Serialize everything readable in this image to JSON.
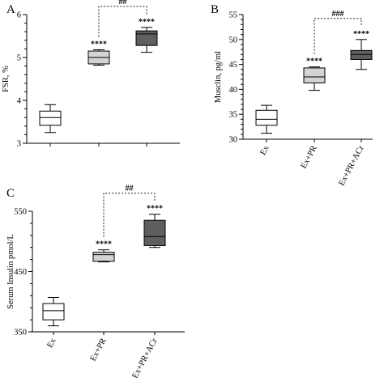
{
  "chart_data": [
    {
      "type": "box",
      "panel": "A",
      "ylabel": "FSR, %",
      "ylim": [
        3,
        6
      ],
      "yticks": [
        3,
        4,
        5,
        6
      ],
      "categories": [],
      "boxes": [
        {
          "min": 3.25,
          "q1": 3.42,
          "median": 3.6,
          "q3": 3.75,
          "max": 3.9,
          "fill": "#ffffff",
          "sig": ""
        },
        {
          "min": 4.82,
          "q1": 4.85,
          "median": 5.0,
          "q3": 5.15,
          "max": 5.18,
          "fill": "#d3d3d3",
          "sig": "****"
        },
        {
          "min": 5.12,
          "q1": 5.28,
          "median": 5.55,
          "q3": 5.62,
          "max": 5.7,
          "fill": "#5f5f5f",
          "sig": "****"
        }
      ],
      "brackets": [
        {
          "from": 1,
          "to": 2,
          "label": "##"
        }
      ]
    },
    {
      "type": "box",
      "panel": "B",
      "ylabel": "Musclin, pg/ml",
      "ylim": [
        30,
        55
      ],
      "yticks": [
        30,
        35,
        40,
        45,
        50,
        55
      ],
      "categories": [
        "Ex",
        "Ex+PR",
        "Ex+PR+ACr"
      ],
      "boxes": [
        {
          "min": 31.2,
          "q1": 32.8,
          "median": 34.0,
          "q3": 35.8,
          "max": 36.8,
          "fill": "#ffffff",
          "sig": ""
        },
        {
          "min": 39.8,
          "q1": 41.3,
          "median": 42.5,
          "q3": 44.3,
          "max": 44.5,
          "fill": "#d3d3d3",
          "sig": "****"
        },
        {
          "min": 44.0,
          "q1": 46.0,
          "median": 47.0,
          "q3": 47.8,
          "max": 50.0,
          "fill": "#5f5f5f",
          "sig": "****"
        }
      ],
      "brackets": [
        {
          "from": 1,
          "to": 2,
          "label": "###"
        }
      ]
    },
    {
      "type": "box",
      "panel": "C",
      "ylabel": "Serum Insulin pmol/L",
      "ylim": [
        350,
        550
      ],
      "yticks": [
        350,
        450,
        550
      ],
      "categories": [
        "Ex",
        "Ex+PR",
        "Ex+PR+ACr"
      ],
      "boxes": [
        {
          "min": 360,
          "q1": 370,
          "median": 385,
          "q3": 397,
          "max": 407,
          "fill": "#ffffff",
          "sig": ""
        },
        {
          "min": 466,
          "q1": 467,
          "median": 478,
          "q3": 482,
          "max": 486,
          "fill": "#d3d3d3",
          "sig": "****"
        },
        {
          "min": 490,
          "q1": 493,
          "median": 508,
          "q3": 535,
          "max": 545,
          "fill": "#5f5f5f",
          "sig": "****"
        }
      ],
      "brackets": [
        {
          "from": 1,
          "to": 2,
          "label": "##"
        }
      ]
    }
  ]
}
